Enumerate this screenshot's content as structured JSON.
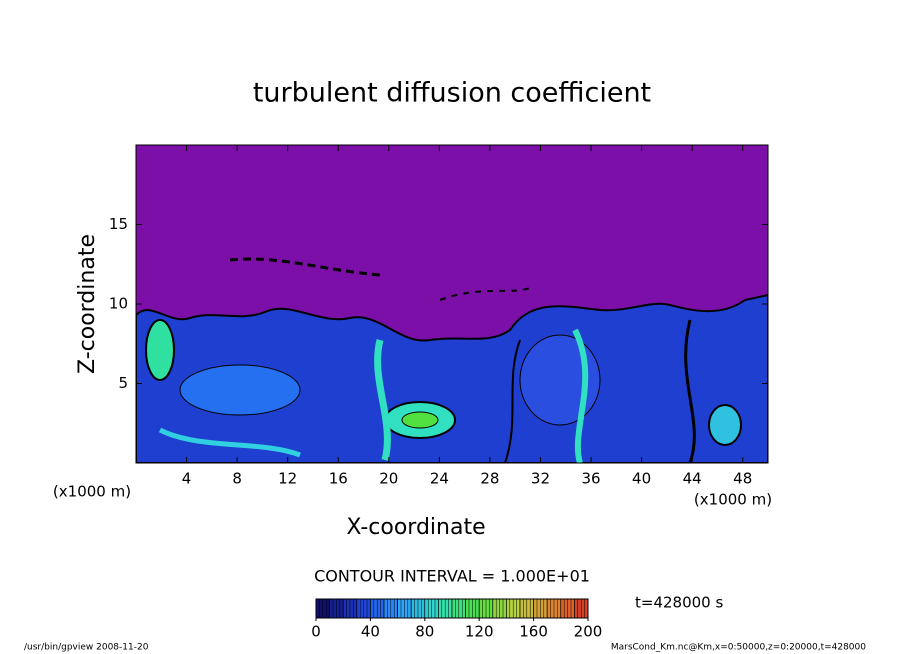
{
  "chart_data": {
    "type": "contour",
    "title": "turbulent diffusion coefficient",
    "x_label": "X-coordinate",
    "y_label": "Z-coordinate",
    "x_unit": "(x1000 m)",
    "y_unit": "(x1000 m)",
    "xlim": [
      0,
      50
    ],
    "xticks": [
      4,
      8,
      12,
      16,
      20,
      24,
      28,
      32,
      36,
      40,
      44,
      48
    ],
    "ylim": [
      0,
      20
    ],
    "yticks": [
      5,
      10,
      15
    ],
    "contour_interval": "CONTOUR INTERVAL = 1.000E+01",
    "time_label": "t=428000 s",
    "colorbar": {
      "lim": [
        0,
        200
      ],
      "ticks": [
        0,
        40,
        80,
        120,
        160,
        200
      ],
      "step": 10,
      "colors": [
        "#10106a",
        "#1f3fd8",
        "#2f9fff",
        "#30e0c0",
        "#50e040",
        "#c0d040",
        "#e08030",
        "#d02020"
      ]
    },
    "footer_left": "/usr/bin/gpview  2008-11-20",
    "footer_right": "MarsCond_Km.nc@Km,x=0:50000,z=0:20000,t=428000"
  }
}
